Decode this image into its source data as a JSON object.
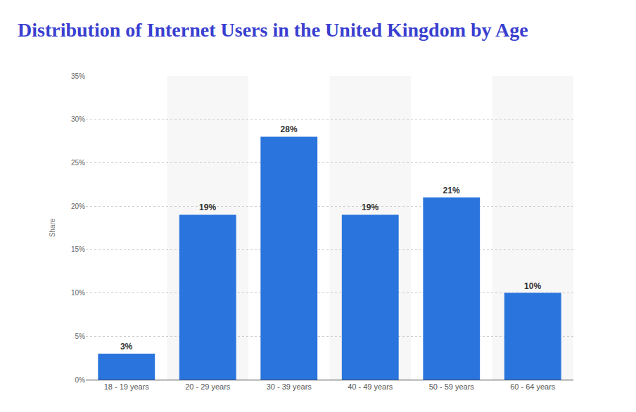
{
  "chart_data": {
    "type": "bar",
    "title": "Distribution of Internet Users in the United Kingdom by Age",
    "y_label": "Share",
    "categories": [
      "18 - 19 years",
      "20 - 29 years",
      "30 - 39 years",
      "40 - 49 years",
      "50 - 59 years",
      "60 - 64 years"
    ],
    "values": [
      3,
      19,
      28,
      19,
      21,
      10
    ],
    "value_labels": [
      "3%",
      "19%",
      "28%",
      "19%",
      "21%",
      "10%"
    ],
    "data_labels": true,
    "color": "#2a75dd",
    "ylim": [
      0,
      35
    ],
    "yticks": [
      {
        "value": 0,
        "label": "0%"
      },
      {
        "value": 5,
        "label": "5%"
      },
      {
        "value": 10,
        "label": "10%"
      },
      {
        "value": 15,
        "label": "15%"
      },
      {
        "value": 20,
        "label": "20%"
      },
      {
        "value": 25,
        "label": "25%"
      },
      {
        "value": 30,
        "label": "30%"
      },
      {
        "value": 35,
        "label": "35%"
      }
    ],
    "grid": true
  }
}
